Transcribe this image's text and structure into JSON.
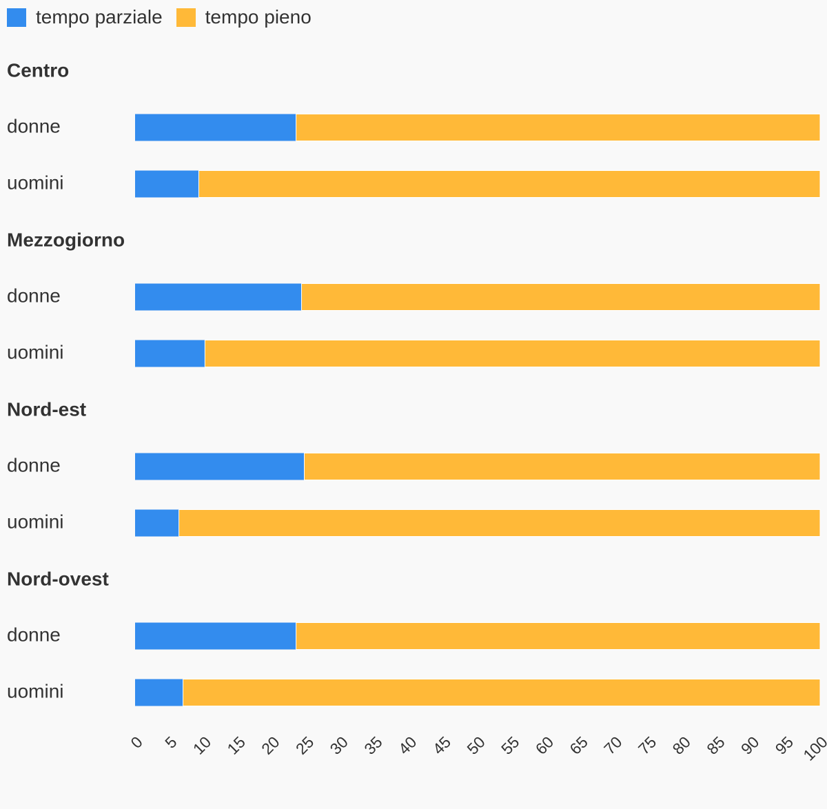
{
  "legend": [
    {
      "label": "tempo parziale",
      "color": "#338cee"
    },
    {
      "label": "tempo pieno",
      "color": "#ffb938"
    }
  ],
  "chart_data": {
    "type": "bar",
    "orientation": "horizontal",
    "stacked": true,
    "xlim": [
      0,
      100
    ],
    "xticks": [
      "0",
      "5",
      "10",
      "15",
      "20",
      "25",
      "30",
      "35",
      "40",
      "45",
      "50",
      "55",
      "60",
      "65",
      "70",
      "75",
      "80",
      "85",
      "90",
      "95",
      "100"
    ],
    "legend_position": "top-left",
    "series": [
      {
        "name": "tempo parziale",
        "color": "#338cee"
      },
      {
        "name": "tempo pieno",
        "color": "#ffb938"
      }
    ],
    "groups": [
      {
        "title": "Centro",
        "rows": [
          {
            "label": "donne",
            "values": [
              23.5,
              76.5
            ]
          },
          {
            "label": "uomini",
            "values": [
              9.3,
              90.7
            ]
          }
        ]
      },
      {
        "title": "Mezzogiorno",
        "rows": [
          {
            "label": "donne",
            "values": [
              24.3,
              75.7
            ]
          },
          {
            "label": "uomini",
            "values": [
              10.2,
              89.8
            ]
          }
        ]
      },
      {
        "title": "Nord-est",
        "rows": [
          {
            "label": "donne",
            "values": [
              24.7,
              75.3
            ]
          },
          {
            "label": "uomini",
            "values": [
              6.4,
              93.6
            ]
          }
        ]
      },
      {
        "title": "Nord-ovest",
        "rows": [
          {
            "label": "donne",
            "values": [
              23.5,
              76.5
            ]
          },
          {
            "label": "uomini",
            "values": [
              7.0,
              93.0
            ]
          }
        ]
      }
    ]
  }
}
